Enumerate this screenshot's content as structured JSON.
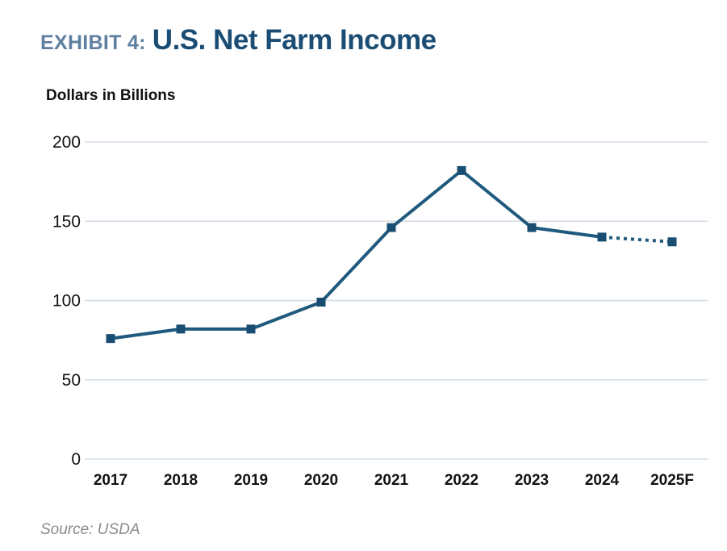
{
  "header": {
    "prefix": "EXHIBIT 4:",
    "title": "U.S. Net Farm Income"
  },
  "source": "Source: USDA",
  "chart_data": {
    "type": "line",
    "title": "U.S. Net Farm Income",
    "ylabel": "Dollars in Billions",
    "xlabel": "",
    "categories": [
      "2017",
      "2018",
      "2019",
      "2020",
      "2021",
      "2022",
      "2023",
      "2024",
      "2025F"
    ],
    "series": [
      {
        "name": "U.S. Net Farm Income",
        "values": [
          76,
          82,
          82,
          99,
          146,
          182,
          146,
          140,
          137
        ],
        "forecast_from_index": 7
      }
    ],
    "yticks": [
      0,
      50,
      100,
      150,
      200
    ],
    "ylim": [
      0,
      200
    ],
    "grid": true,
    "colors": {
      "line": "#1f5a7e",
      "marker": "#1a4d72",
      "grid": "#d3dde6"
    }
  }
}
